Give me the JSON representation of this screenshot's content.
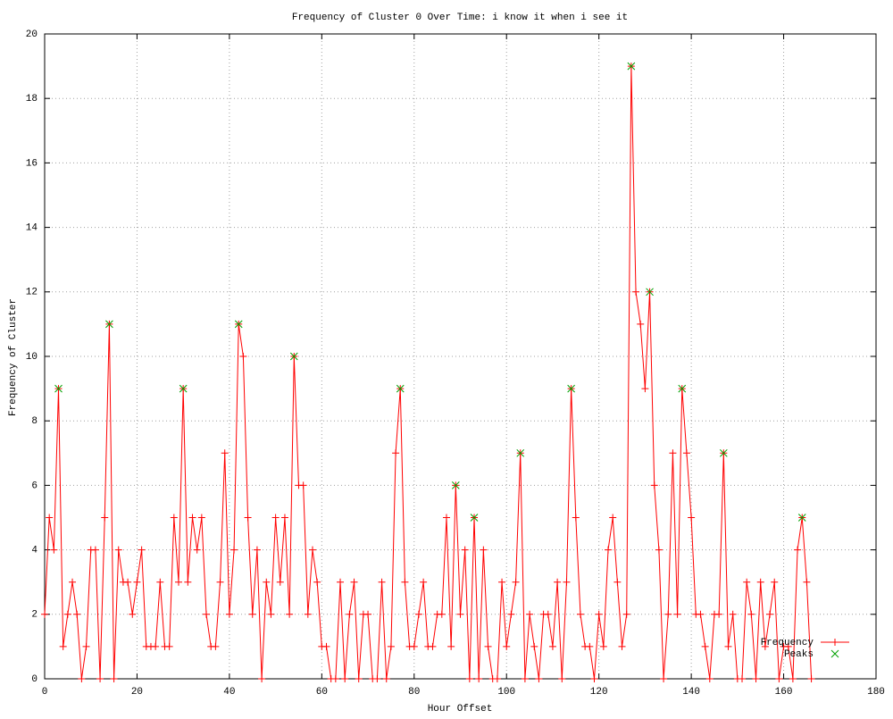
{
  "chart_data": {
    "type": "line",
    "title": "Frequency of Cluster 0 Over Time: i know it when i see it",
    "xlabel": "Hour Offset",
    "ylabel": "Frequency of Cluster",
    "xlim": [
      0,
      180
    ],
    "xticks": [
      0,
      20,
      40,
      60,
      80,
      100,
      120,
      140,
      160,
      180
    ],
    "ylim": [
      0,
      20
    ],
    "yticks": [
      0,
      2,
      4,
      6,
      8,
      10,
      12,
      14,
      16,
      18,
      20
    ],
    "grid": true,
    "legend": "bottom-right",
    "series": [
      {
        "name": "Frequency",
        "color": "#ff0000",
        "marker": "plus",
        "line": true,
        "x": [
          0,
          1,
          2,
          3,
          4,
          5,
          6,
          7,
          8,
          9,
          10,
          11,
          12,
          13,
          14,
          15,
          16,
          17,
          18,
          19,
          20,
          21,
          22,
          23,
          24,
          25,
          26,
          27,
          28,
          29,
          30,
          31,
          32,
          33,
          34,
          35,
          36,
          37,
          38,
          39,
          40,
          41,
          42,
          43,
          44,
          45,
          46,
          47,
          48,
          49,
          50,
          51,
          52,
          53,
          54,
          55,
          56,
          57,
          58,
          59,
          60,
          61,
          62,
          63,
          64,
          65,
          66,
          67,
          68,
          69,
          70,
          71,
          72,
          73,
          74,
          75,
          76,
          77,
          78,
          79,
          80,
          81,
          82,
          83,
          84,
          85,
          86,
          87,
          88,
          89,
          90,
          91,
          92,
          93,
          94,
          95,
          96,
          97,
          98,
          99,
          100,
          101,
          102,
          103,
          104,
          105,
          106,
          107,
          108,
          109,
          110,
          111,
          112,
          113,
          114,
          115,
          116,
          117,
          118,
          119,
          120,
          121,
          122,
          123,
          124,
          125,
          126,
          127,
          128,
          129,
          130,
          131,
          132,
          133,
          134,
          135,
          136,
          137,
          138,
          139,
          140,
          141,
          142,
          143,
          144,
          145,
          146,
          147,
          148,
          149,
          150,
          151,
          152,
          153,
          154,
          155,
          156,
          157,
          158,
          159,
          160,
          161,
          162,
          163,
          164,
          165,
          166
        ],
        "values": [
          2,
          5,
          4,
          9,
          1,
          2,
          3,
          2,
          0,
          1,
          4,
          4,
          0,
          5,
          11,
          0,
          4,
          3,
          3,
          2,
          3,
          4,
          1,
          1,
          1,
          3,
          1,
          1,
          5,
          3,
          9,
          3,
          5,
          4,
          5,
          2,
          1,
          1,
          3,
          7,
          2,
          4,
          11,
          10,
          5,
          2,
          4,
          0,
          3,
          2,
          5,
          3,
          5,
          2,
          10,
          6,
          6,
          2,
          4,
          3,
          1,
          1,
          0,
          0,
          3,
          0,
          2,
          3,
          0,
          2,
          2,
          0,
          0,
          3,
          0,
          1,
          7,
          9,
          3,
          1,
          1,
          2,
          3,
          1,
          1,
          2,
          2,
          5,
          1,
          6,
          2,
          4,
          0,
          5,
          0,
          4,
          1,
          0,
          0,
          3,
          1,
          2,
          3,
          7,
          0,
          2,
          1,
          0,
          2,
          2,
          1,
          3,
          0,
          3,
          9,
          5,
          2,
          1,
          1,
          0,
          2,
          1,
          4,
          5,
          3,
          1,
          2,
          19,
          12,
          11,
          9,
          12,
          6,
          4,
          0,
          2,
          7,
          2,
          9,
          7,
          5,
          2,
          2,
          1,
          0,
          2,
          2,
          7,
          1,
          2,
          0,
          0,
          3,
          2,
          0,
          3,
          1,
          2,
          3,
          0,
          1,
          1,
          0,
          4,
          5,
          3,
          0
        ]
      },
      {
        "name": "Peaks",
        "color": "#00a000",
        "marker": "cross",
        "line": false,
        "x": [
          3,
          14,
          30,
          42,
          54,
          77,
          89,
          93,
          103,
          114,
          127,
          131,
          138,
          147,
          164
        ],
        "values": [
          9,
          11,
          9,
          11,
          10,
          9,
          6,
          5,
          7,
          9,
          19,
          12,
          9,
          7,
          5
        ]
      }
    ]
  }
}
